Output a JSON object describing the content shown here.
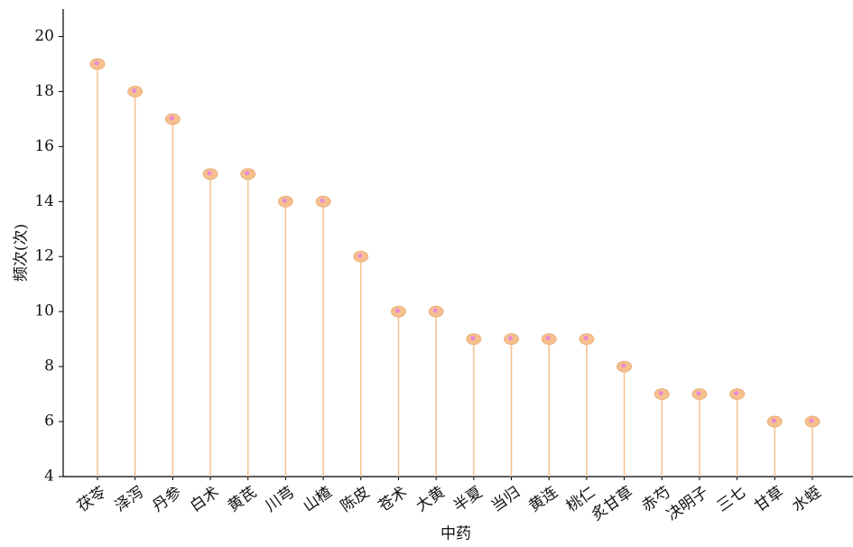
{
  "chart_data": {
    "type": "lollipop",
    "categories": [
      "茯苓",
      "泽泻",
      "丹参",
      "白术",
      "黄芪",
      "川芎",
      "山楂",
      "陈皮",
      "苍术",
      "大黄",
      "半夏",
      "当归",
      "黄连",
      "桃仁",
      "炙甘草",
      "赤芍",
      "决明子",
      "三七",
      "甘草",
      "水蛭"
    ],
    "values": [
      19,
      18,
      17,
      15,
      15,
      14,
      14,
      12,
      10,
      10,
      9,
      9,
      9,
      9,
      8,
      7,
      7,
      7,
      6,
      6
    ],
    "color": "#f5c08e",
    "center_color": "#e98ad6",
    "xlabel": "中药",
    "ylabel": "频次(次)",
    "ylim": [
      4,
      21
    ],
    "yticks": [
      4,
      6,
      8,
      10,
      12,
      14,
      16,
      18,
      20
    ]
  }
}
